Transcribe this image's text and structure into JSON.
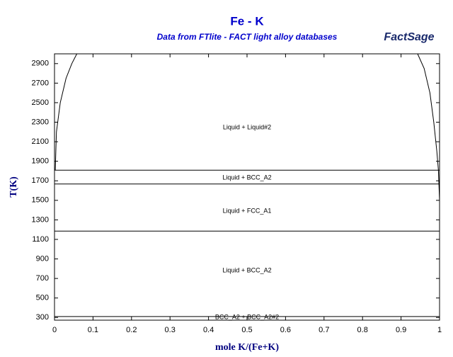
{
  "chart_data": {
    "type": "line",
    "title": "Fe - K",
    "subtitle": "Data from FTlite - FACT light alloy databases",
    "logo": "FactSage",
    "x_label": "mole K/(Fe+K)",
    "y_label": "T(K)",
    "xlim": [
      0,
      1
    ],
    "xticks": [
      0,
      0.1,
      0.2,
      0.3,
      0.4,
      0.5,
      0.6,
      0.7,
      0.8,
      0.9,
      1
    ],
    "ylim": [
      273,
      3000
    ],
    "yticks": [
      300,
      500,
      700,
      900,
      1100,
      1300,
      1500,
      1700,
      1900,
      2100,
      2300,
      2500,
      2700,
      2900
    ],
    "series": [
      {
        "color": "#000000",
        "x": [
          0.002,
          0.005,
          0.015,
          0.03,
          0.045,
          0.058
        ],
        "values": [
          1809,
          2200,
          2500,
          2750,
          2900,
          3000
        ]
      },
      {
        "color": "#000000",
        "x": [
          0.943,
          0.96,
          0.975,
          0.985,
          0.993,
          0.997,
          1
        ],
        "values": [
          3000,
          2850,
          2600,
          2300,
          2000,
          1809,
          1500
        ]
      },
      {
        "color": "#000000",
        "x": [
          0,
          1
        ],
        "values": [
          1809,
          1809
        ]
      },
      {
        "color": "#000000",
        "x": [
          0,
          1
        ],
        "values": [
          1667,
          1667
        ]
      },
      {
        "color": "#000000",
        "x": [
          0,
          1
        ],
        "values": [
          1185,
          1185
        ]
      },
      {
        "color": "#000000",
        "x": [
          0,
          1
        ],
        "values": [
          310,
          310
        ]
      }
    ],
    "annotations": [
      {
        "text": "Liquid + Liquid#2",
        "x": 0.5,
        "y": 2246
      },
      {
        "text": "Liquid + BCC_A2",
        "x": 0.5,
        "y": 1731
      },
      {
        "text": "Liquid + FCC_A1",
        "x": 0.5,
        "y": 1389
      },
      {
        "text": "Liquid + BCC_A2",
        "x": 0.5,
        "y": 779
      },
      {
        "text": "BCC_A2 + BCC_A2#2",
        "x": 0.5,
        "y": 300
      }
    ]
  }
}
